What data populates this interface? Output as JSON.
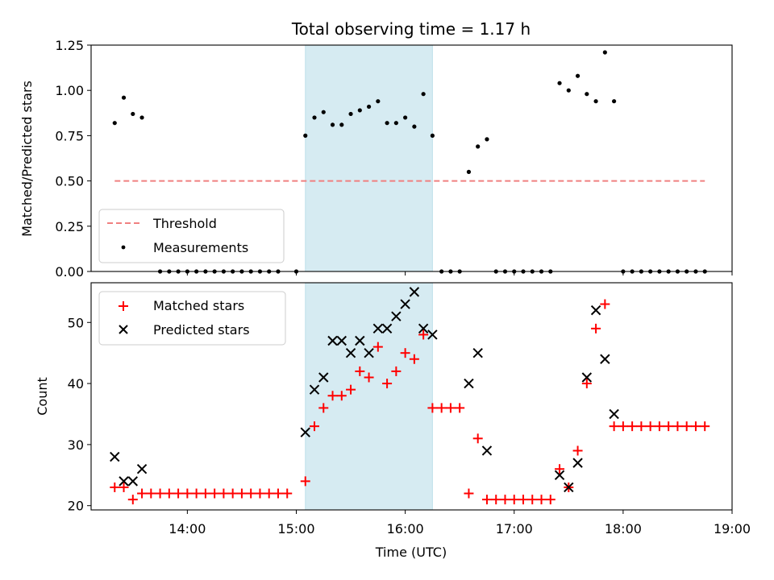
{
  "chart_data": [
    {
      "type": "scatter",
      "title": "Total observing time = 1.17 h",
      "ylabel": "Matched/Predicted stars",
      "xlabel": "",
      "xlim": [
        "13:07",
        "19:00"
      ],
      "ylim": [
        0,
        1.25
      ],
      "yticks": [
        "0.00",
        "0.25",
        "0.50",
        "0.75",
        "1.00",
        "1.25"
      ],
      "shaded_interval": [
        "15:05",
        "16:15"
      ],
      "legend": {
        "placement": "lower-left",
        "entries": [
          "Threshold",
          "Measurements"
        ]
      },
      "threshold": {
        "name": "Threshold",
        "y": 0.5,
        "x_range": [
          "13:20",
          "18:45"
        ],
        "color": "#f08080"
      },
      "series": [
        {
          "name": "Measurements",
          "color": "#000000",
          "marker": "dot",
          "points": [
            [
              "13:20",
              0.82
            ],
            [
              "13:25",
              0.96
            ],
            [
              "13:30",
              0.87
            ],
            [
              "13:35",
              0.85
            ],
            [
              "13:45",
              0.0
            ],
            [
              "13:50",
              0.0
            ],
            [
              "13:55",
              0.0
            ],
            [
              "14:00",
              0.0
            ],
            [
              "14:05",
              0.0
            ],
            [
              "14:10",
              0.0
            ],
            [
              "14:15",
              0.0
            ],
            [
              "14:20",
              0.0
            ],
            [
              "14:25",
              0.0
            ],
            [
              "14:30",
              0.0
            ],
            [
              "14:35",
              0.0
            ],
            [
              "14:40",
              0.0
            ],
            [
              "14:45",
              0.0
            ],
            [
              "14:50",
              0.0
            ],
            [
              "15:00",
              0.0
            ],
            [
              "15:05",
              0.75
            ],
            [
              "15:10",
              0.85
            ],
            [
              "15:15",
              0.88
            ],
            [
              "15:20",
              0.81
            ],
            [
              "15:25",
              0.81
            ],
            [
              "15:30",
              0.87
            ],
            [
              "15:35",
              0.89
            ],
            [
              "15:40",
              0.91
            ],
            [
              "15:45",
              0.94
            ],
            [
              "15:50",
              0.82
            ],
            [
              "15:55",
              0.82
            ],
            [
              "16:00",
              0.85
            ],
            [
              "16:05",
              0.8
            ],
            [
              "16:10",
              0.98
            ],
            [
              "16:15",
              0.75
            ],
            [
              "16:20",
              0.0
            ],
            [
              "16:25",
              0.0
            ],
            [
              "16:30",
              0.0
            ],
            [
              "16:35",
              0.55
            ],
            [
              "16:40",
              0.69
            ],
            [
              "16:45",
              0.73
            ],
            [
              "16:50",
              0.0
            ],
            [
              "16:55",
              0.0
            ],
            [
              "17:00",
              0.0
            ],
            [
              "17:05",
              0.0
            ],
            [
              "17:10",
              0.0
            ],
            [
              "17:15",
              0.0
            ],
            [
              "17:20",
              0.0
            ],
            [
              "17:25",
              1.04
            ],
            [
              "17:30",
              1.0
            ],
            [
              "17:35",
              1.08
            ],
            [
              "17:40",
              0.98
            ],
            [
              "17:45",
              0.94
            ],
            [
              "17:50",
              1.21
            ],
            [
              "17:55",
              0.94
            ],
            [
              "18:00",
              0.0
            ],
            [
              "18:05",
              0.0
            ],
            [
              "18:10",
              0.0
            ],
            [
              "18:15",
              0.0
            ],
            [
              "18:20",
              0.0
            ],
            [
              "18:25",
              0.0
            ],
            [
              "18:30",
              0.0
            ],
            [
              "18:35",
              0.0
            ],
            [
              "18:40",
              0.0
            ],
            [
              "18:45",
              0.0
            ]
          ]
        }
      ]
    },
    {
      "type": "scatter",
      "title": "",
      "ylabel": "Count",
      "xlabel": "Time (UTC)",
      "xlim": [
        "13:07",
        "19:00"
      ],
      "xticks": [
        "14:00",
        "15:00",
        "16:00",
        "17:00",
        "18:00",
        "19:00"
      ],
      "ylim": [
        19.3,
        56.5
      ],
      "yticks": [
        "20",
        "30",
        "40",
        "50"
      ],
      "shaded_interval": [
        "15:05",
        "16:15"
      ],
      "legend": {
        "placement": "upper-left",
        "entries": [
          "Matched stars",
          "Predicted stars"
        ]
      },
      "series": [
        {
          "name": "Matched stars",
          "color": "#ff0000",
          "marker": "plus",
          "points": [
            [
              "13:20",
              23
            ],
            [
              "13:25",
              23
            ],
            [
              "13:30",
              21
            ],
            [
              "13:35",
              22
            ],
            [
              "13:40",
              22
            ],
            [
              "13:45",
              22
            ],
            [
              "13:50",
              22
            ],
            [
              "13:55",
              22
            ],
            [
              "14:00",
              22
            ],
            [
              "14:05",
              22
            ],
            [
              "14:10",
              22
            ],
            [
              "14:15",
              22
            ],
            [
              "14:20",
              22
            ],
            [
              "14:25",
              22
            ],
            [
              "14:30",
              22
            ],
            [
              "14:35",
              22
            ],
            [
              "14:40",
              22
            ],
            [
              "14:45",
              22
            ],
            [
              "14:50",
              22
            ],
            [
              "14:55",
              22
            ],
            [
              "15:05",
              24
            ],
            [
              "15:10",
              33
            ],
            [
              "15:15",
              36
            ],
            [
              "15:20",
              38
            ],
            [
              "15:25",
              38
            ],
            [
              "15:30",
              39
            ],
            [
              "15:35",
              42
            ],
            [
              "15:40",
              41
            ],
            [
              "15:45",
              46
            ],
            [
              "15:50",
              40
            ],
            [
              "15:55",
              42
            ],
            [
              "16:00",
              45
            ],
            [
              "16:05",
              44
            ],
            [
              "16:10",
              48
            ],
            [
              "16:15",
              36
            ],
            [
              "16:20",
              36
            ],
            [
              "16:25",
              36
            ],
            [
              "16:30",
              36
            ],
            [
              "16:35",
              22
            ],
            [
              "16:40",
              31
            ],
            [
              "16:45",
              21
            ],
            [
              "16:50",
              21
            ],
            [
              "16:55",
              21
            ],
            [
              "17:00",
              21
            ],
            [
              "17:05",
              21
            ],
            [
              "17:10",
              21
            ],
            [
              "17:15",
              21
            ],
            [
              "17:20",
              21
            ],
            [
              "17:25",
              26
            ],
            [
              "17:30",
              23
            ],
            [
              "17:35",
              29
            ],
            [
              "17:40",
              40
            ],
            [
              "17:45",
              49
            ],
            [
              "17:50",
              53
            ],
            [
              "17:55",
              33
            ],
            [
              "18:00",
              33
            ],
            [
              "18:05",
              33
            ],
            [
              "18:10",
              33
            ],
            [
              "18:15",
              33
            ],
            [
              "18:20",
              33
            ],
            [
              "18:25",
              33
            ],
            [
              "18:30",
              33
            ],
            [
              "18:35",
              33
            ],
            [
              "18:40",
              33
            ],
            [
              "18:45",
              33
            ]
          ]
        },
        {
          "name": "Predicted stars",
          "color": "#000000",
          "marker": "x",
          "points": [
            [
              "13:20",
              28
            ],
            [
              "13:25",
              24
            ],
            [
              "13:30",
              24
            ],
            [
              "13:35",
              26
            ],
            [
              "15:05",
              32
            ],
            [
              "15:10",
              39
            ],
            [
              "15:15",
              41
            ],
            [
              "15:20",
              47
            ],
            [
              "15:25",
              47
            ],
            [
              "15:30",
              45
            ],
            [
              "15:35",
              47
            ],
            [
              "15:40",
              45
            ],
            [
              "15:45",
              49
            ],
            [
              "15:50",
              49
            ],
            [
              "15:55",
              51
            ],
            [
              "16:00",
              53
            ],
            [
              "16:05",
              55
            ],
            [
              "16:10",
              49
            ],
            [
              "16:15",
              48
            ],
            [
              "16:35",
              40
            ],
            [
              "16:40",
              45
            ],
            [
              "16:45",
              29
            ],
            [
              "17:25",
              25
            ],
            [
              "17:30",
              23
            ],
            [
              "17:35",
              27
            ],
            [
              "17:40",
              41
            ],
            [
              "17:45",
              52
            ],
            [
              "17:50",
              44
            ],
            [
              "17:55",
              35
            ]
          ]
        }
      ]
    }
  ]
}
